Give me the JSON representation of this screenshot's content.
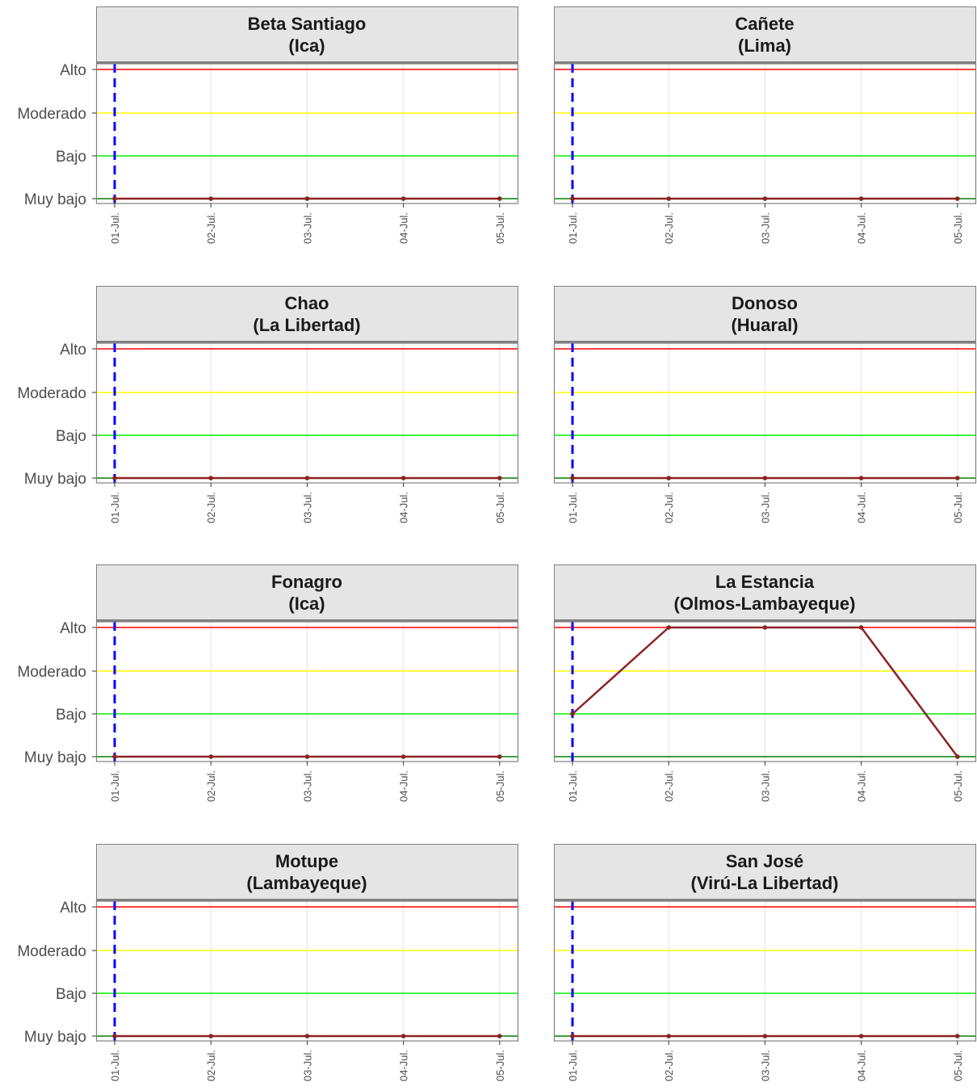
{
  "chart_data": {
    "type": "line",
    "x_categories": [
      "01-Jul.",
      "02-Jul.",
      "03-Jul.",
      "04-Jul.",
      "05-Jul."
    ],
    "y_levels": [
      "Muy bajo",
      "Bajo",
      "Moderado",
      "Alto"
    ],
    "reference_lines": [
      {
        "level": "Alto",
        "color": "#ff0000"
      },
      {
        "level": "Moderado",
        "color": "#ffff00"
      },
      {
        "level": "Bajo",
        "color": "#00ee00"
      },
      {
        "level": "Muy bajo",
        "color": "#008000"
      }
    ],
    "current_date_marker": {
      "x": "01-Jul.",
      "color": "#0000ff",
      "style": "dashed"
    },
    "series_color": "#8b2323",
    "panels": [
      {
        "title": "Beta Santiago",
        "subtitle": "(Ica)",
        "values": [
          "Muy bajo",
          "Muy bajo",
          "Muy bajo",
          "Muy bajo",
          "Muy bajo"
        ]
      },
      {
        "title": "Cañete",
        "subtitle": "(Lima)",
        "values": [
          "Muy bajo",
          "Muy bajo",
          "Muy bajo",
          "Muy bajo",
          "Muy bajo"
        ]
      },
      {
        "title": "Chao",
        "subtitle": "(La Libertad)",
        "values": [
          "Muy bajo",
          "Muy bajo",
          "Muy bajo",
          "Muy bajo",
          "Muy bajo"
        ]
      },
      {
        "title": "Donoso",
        "subtitle": "(Huaral)",
        "values": [
          "Muy bajo",
          "Muy bajo",
          "Muy bajo",
          "Muy bajo",
          "Muy bajo"
        ]
      },
      {
        "title": "Fonagro",
        "subtitle": "(Ica)",
        "values": [
          "Muy bajo",
          "Muy bajo",
          "Muy bajo",
          "Muy bajo",
          "Muy bajo"
        ]
      },
      {
        "title": "La Estancia",
        "subtitle": "(Olmos-Lambayeque)",
        "values": [
          "Bajo",
          "Alto",
          "Alto",
          "Alto",
          "Muy bajo"
        ]
      },
      {
        "title": "Motupe",
        "subtitle": "(Lambayeque)",
        "values": [
          "Muy bajo",
          "Muy bajo",
          "Muy bajo",
          "Muy bajo",
          "Muy bajo"
        ]
      },
      {
        "title": "San José",
        "subtitle": "(Virú-La Libertad)",
        "values": [
          "Muy bajo",
          "Muy bajo",
          "Muy bajo",
          "Muy bajo",
          "Muy bajo"
        ]
      }
    ]
  }
}
